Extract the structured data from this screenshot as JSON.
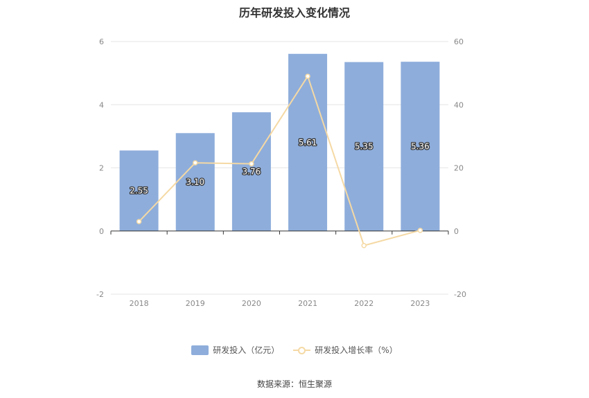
{
  "title": "历年研发投入变化情况",
  "source_note": "数据来源：恒生聚源",
  "colors": {
    "bar": "#8EADDB",
    "line": "#F5D9A4",
    "axis": "#333333",
    "grid": "#E6E6E6",
    "tick_text": "#888888"
  },
  "chart_data": {
    "type": "bar",
    "categories": [
      "2018",
      "2019",
      "2020",
      "2021",
      "2022",
      "2023"
    ],
    "series": [
      {
        "name": "研发投入（亿元）",
        "type": "bar",
        "axis": "left",
        "values": [
          2.55,
          3.1,
          3.76,
          5.61,
          5.35,
          5.36
        ],
        "labels": [
          "2.55",
          "3.10",
          "3.76",
          "5.61",
          "5.35",
          "5.36"
        ]
      },
      {
        "name": "研发投入增长率（%）",
        "type": "line",
        "axis": "right",
        "values": [
          3.0,
          21.6,
          21.3,
          49.0,
          -4.6,
          0.2
        ]
      }
    ],
    "y_left": {
      "min": -2,
      "max": 6,
      "ticks": [
        "-2",
        "0",
        "2",
        "4",
        "6"
      ]
    },
    "y_right": {
      "min": -20,
      "max": 60,
      "ticks": [
        "-20",
        "0",
        "20",
        "40",
        "60"
      ]
    },
    "grid": true,
    "legend_position": "bottom"
  }
}
